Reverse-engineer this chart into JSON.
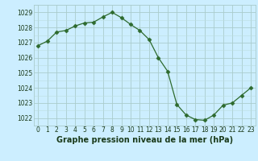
{
  "x": [
    0,
    1,
    2,
    3,
    4,
    5,
    6,
    7,
    8,
    9,
    10,
    11,
    12,
    13,
    14,
    15,
    16,
    17,
    18,
    19,
    20,
    21,
    22,
    23
  ],
  "y": [
    1026.8,
    1027.1,
    1027.7,
    1027.8,
    1028.1,
    1028.3,
    1028.35,
    1028.7,
    1029.0,
    1028.65,
    1028.2,
    1027.8,
    1027.2,
    1026.0,
    1025.1,
    1022.9,
    1022.2,
    1021.9,
    1021.85,
    1022.2,
    1022.85,
    1023.0,
    1023.5,
    1024.0
  ],
  "line_color": "#2d6a2d",
  "marker": "D",
  "marker_size": 2.5,
  "bg_color": "#cceeff",
  "grid_major_color": "#aacccc",
  "grid_minor_color": "#bbdddd",
  "title": "Graphe pression niveau de la mer (hPa)",
  "label_color": "#1a3a1a",
  "ylabel_ticks": [
    1022,
    1023,
    1024,
    1025,
    1026,
    1027,
    1028,
    1029
  ],
  "xlim": [
    -0.5,
    23.5
  ],
  "ylim": [
    1021.5,
    1029.5
  ],
  "tick_fontsize": 5.5,
  "title_fontsize": 7.0
}
